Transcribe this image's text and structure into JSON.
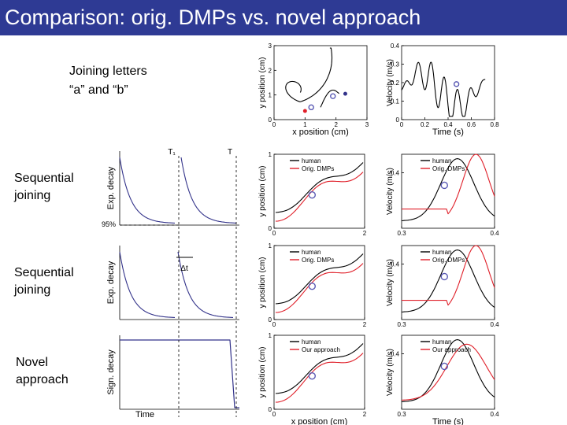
{
  "slide": {
    "title": "Comparison: orig. DMPs vs. novel approach",
    "top_label_line1": "Joining letters",
    "top_label_line2": "“a” and “b”",
    "row1_label_line1": "Sequential",
    "row1_label_line2": "joining",
    "row2_label_line1": "Sequential",
    "row2_label_line2": "joining",
    "row3_label_line1": "Novel",
    "row3_label_line2": "approach"
  },
  "colors": {
    "title_bg": "#2e3a94",
    "human": "#000000",
    "dmp": "#e0202a",
    "kernel": "#33338a",
    "marker": "#5a5ab4"
  },
  "decay_panel": {
    "t1_label": "T₁",
    "t_label": "T",
    "threshold_label": "95%",
    "dt_label": "Δt",
    "ylabels": [
      "Exp. decay",
      "Exp. decay",
      "Sign. decay"
    ],
    "xlabel": "Time"
  },
  "chart_data": [
    {
      "type": "line",
      "name": "letters-a-b-trajectory",
      "xlabel": "x position (cm)",
      "ylabel": "y position (cm)",
      "xlim": [
        0,
        3
      ],
      "ylim": [
        0,
        3
      ],
      "xticks": [
        "0",
        "1",
        "2",
        "3"
      ],
      "yticks": [
        "0",
        "1",
        "2",
        "3"
      ],
      "markers": [
        {
          "x": 1.2,
          "y": 0.5
        },
        {
          "x": 1.9,
          "y": 0.95
        }
      ]
    },
    {
      "type": "line",
      "name": "letters-a-b-velocity",
      "xlabel": "Time (s)",
      "ylabel": "Velocity (m/s)",
      "xlim": [
        0,
        0.85
      ],
      "ylim": [
        0,
        0.45
      ],
      "xticks": [
        "0",
        "0.2",
        "0.4",
        "0.6",
        "0.8"
      ],
      "yticks": [
        "0",
        "0.1",
        "0.2",
        "0.3",
        "0.4"
      ]
    },
    {
      "type": "line",
      "name": "row1-position",
      "xlabel": "",
      "ylabel": "y position (cm)",
      "xlim": [
        0,
        2
      ],
      "ylim": [
        0,
        1
      ],
      "xticks": [
        "0",
        "2"
      ],
      "yticks": [
        "0",
        "1"
      ],
      "series": [
        {
          "name": "human"
        },
        {
          "name": "Orig. DMPs"
        }
      ]
    },
    {
      "type": "line",
      "name": "row1-velocity",
      "xlabel": "",
      "ylabel": "Velocity (m/s)",
      "xlim": [
        0.3,
        0.4
      ],
      "ylim": [
        0,
        0.5
      ],
      "xticks": [
        "0.3",
        "0.4"
      ],
      "yticks": [
        "0.4"
      ],
      "series": [
        {
          "name": "human"
        },
        {
          "name": "Orig. DMPs"
        }
      ]
    },
    {
      "type": "line",
      "name": "row2-position",
      "xlabel": "",
      "ylabel": "y position (cm)",
      "xlim": [
        0,
        2
      ],
      "ylim": [
        0,
        1
      ],
      "xticks": [
        "0",
        "2"
      ],
      "yticks": [
        "0",
        "1"
      ],
      "series": [
        {
          "name": "human"
        },
        {
          "name": "Orig. DMPs"
        }
      ]
    },
    {
      "type": "line",
      "name": "row2-velocity",
      "xlabel": "",
      "ylabel": "Velocity (m/s)",
      "xlim": [
        0.3,
        0.4
      ],
      "ylim": [
        0,
        0.5
      ],
      "xticks": [
        "0.3",
        "0.4"
      ],
      "yticks": [
        "0.4"
      ],
      "series": [
        {
          "name": "human"
        },
        {
          "name": "Orig. DMPs"
        }
      ]
    },
    {
      "type": "line",
      "name": "row3-position",
      "xlabel": "x position (cm)",
      "ylabel": "y position (cm)",
      "xlim": [
        0,
        2
      ],
      "ylim": [
        0,
        1
      ],
      "xticks": [
        "0",
        "2"
      ],
      "yticks": [
        "0",
        "1"
      ],
      "series": [
        {
          "name": "human"
        },
        {
          "name": "Our approach"
        }
      ]
    },
    {
      "type": "line",
      "name": "row3-velocity",
      "xlabel": "Time (s)",
      "ylabel": "Velocity (m/s)",
      "xlim": [
        0.3,
        0.4
      ],
      "ylim": [
        0,
        0.5
      ],
      "xticks": [
        "0.3",
        "0.4"
      ],
      "yticks": [
        "0.4"
      ],
      "series": [
        {
          "name": "human"
        },
        {
          "name": "Our approach"
        }
      ]
    }
  ]
}
